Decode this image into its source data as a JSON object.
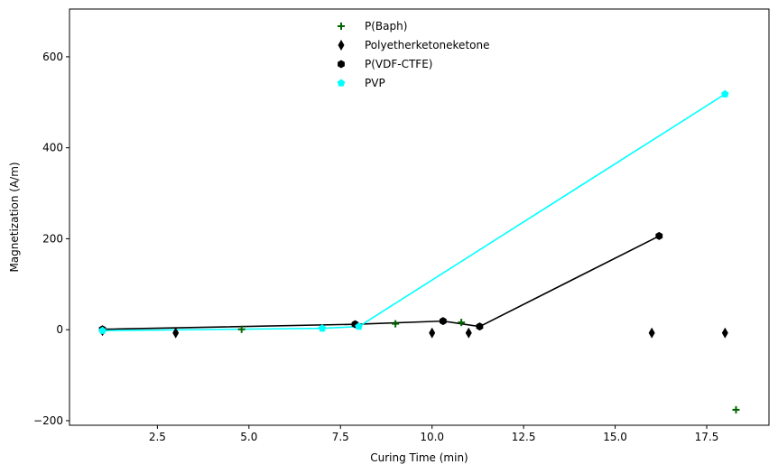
{
  "chart_data": {
    "type": "scatter",
    "xlabel": "Curing Time (min)",
    "ylabel": "Magnetization (A/m)",
    "xlim": [
      0.1,
      19.2
    ],
    "ylim": [
      -210,
      705
    ],
    "x_ticks": [
      2.5,
      5.0,
      7.5,
      10.0,
      12.5,
      15.0,
      17.5
    ],
    "x_tick_labels": [
      "2.5",
      "5.0",
      "7.5",
      "10.0",
      "12.5",
      "15.0",
      "17.5"
    ],
    "y_ticks": [
      -200,
      0,
      200,
      400,
      600
    ],
    "y_tick_labels": [
      "−200",
      "0",
      "200",
      "400",
      "600"
    ],
    "grid": false,
    "legend_position": "top-center",
    "series": [
      {
        "name": "P(Baph)",
        "marker": "plus",
        "color": "#006400",
        "line": false,
        "points": [
          [
            1.0,
            -1
          ],
          [
            4.8,
            1
          ],
          [
            9.0,
            13
          ],
          [
            10.8,
            16
          ],
          [
            18.3,
            -176
          ]
        ]
      },
      {
        "name": "Polyetherketoneketone",
        "marker": "thin-diamond",
        "color": "#000000",
        "line": false,
        "points": [
          [
            1.0,
            -2
          ],
          [
            3.0,
            -7
          ],
          [
            10.0,
            -7
          ],
          [
            11.0,
            -7
          ],
          [
            16.0,
            -7
          ],
          [
            18.0,
            -7
          ]
        ]
      },
      {
        "name": "P(VDF-CTFE)",
        "marker": "hexagon",
        "color": "#000000",
        "line": true,
        "line_color": "#000000",
        "points": [
          [
            1.0,
            1
          ],
          [
            7.9,
            12
          ],
          [
            10.3,
            19
          ],
          [
            11.3,
            7
          ],
          [
            16.2,
            206
          ]
        ]
      },
      {
        "name": "PVP",
        "marker": "pentagon",
        "color": "#00FFFF",
        "line": true,
        "line_color": "#00FFFF",
        "points": [
          [
            1.0,
            -2
          ],
          [
            7.0,
            3
          ],
          [
            8.0,
            7
          ],
          [
            18.0,
            518
          ]
        ]
      }
    ]
  }
}
